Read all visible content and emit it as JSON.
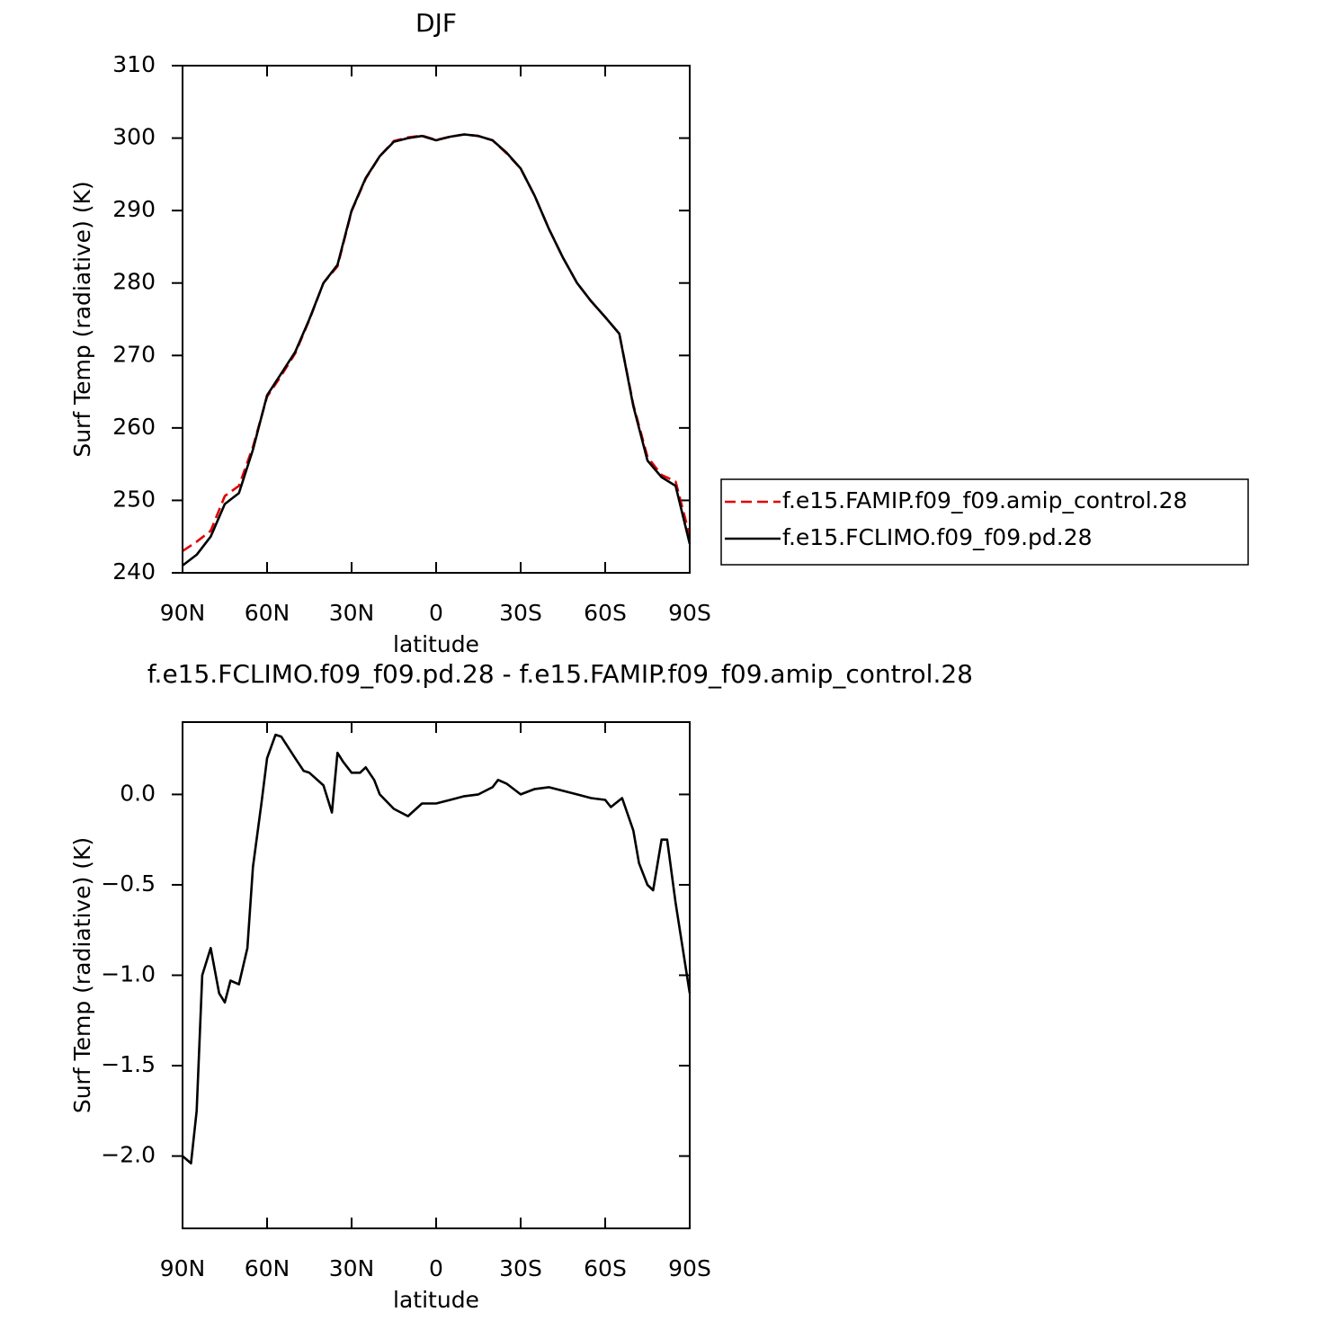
{
  "chart_data": [
    {
      "type": "line",
      "title": "DJF",
      "xlabel": "latitude",
      "ylabel": "Surf Temp (radiative) (K)",
      "x": [
        90,
        85,
        80,
        75,
        70,
        65,
        60,
        55,
        50,
        45,
        40,
        35,
        30,
        25,
        20,
        15,
        10,
        5,
        0,
        -5,
        -10,
        -15,
        -20,
        -25,
        -30,
        -35,
        -40,
        -45,
        -50,
        -55,
        -60,
        -65,
        -70,
        -75,
        -80,
        -85,
        -90
      ],
      "series": [
        {
          "name": "f.e15.FAMIP.f09_f09.amip_control.28",
          "color": "#e00000",
          "style": "dashed",
          "values": [
            243.0,
            244.3,
            245.8,
            250.6,
            252.0,
            257.4,
            264.3,
            267.2,
            270.3,
            274.9,
            280.0,
            282.3,
            289.9,
            294.4,
            297.5,
            299.6,
            300.1,
            300.35,
            299.75,
            300.2,
            300.5,
            300.3,
            299.7,
            297.9,
            295.8,
            292.0,
            287.5,
            283.5,
            280.0,
            277.5,
            275.3,
            273.0,
            263.2,
            256.0,
            253.5,
            252.6,
            245.1
          ]
        },
        {
          "name": "f.e15.FCLIMO.f09_f09.pd.28",
          "color": "#000000",
          "style": "solid",
          "values": [
            241.0,
            242.5,
            245.0,
            249.5,
            251.0,
            257.0,
            264.5,
            267.5,
            270.5,
            275.0,
            280.0,
            282.5,
            290.0,
            294.5,
            297.5,
            299.5,
            300.0,
            300.3,
            299.7,
            300.2,
            300.5,
            300.3,
            299.7,
            298.0,
            295.8,
            292.0,
            287.5,
            283.5,
            280.0,
            277.5,
            275.3,
            273.0,
            263.0,
            255.5,
            253.2,
            252.0,
            244.0
          ]
        }
      ],
      "xlim": [
        90,
        -90
      ],
      "xticks": [
        {
          "value": 90,
          "label": "90N"
        },
        {
          "value": 60,
          "label": "60N"
        },
        {
          "value": 30,
          "label": "30N"
        },
        0,
        {
          "value": -30,
          "label": "30S"
        },
        {
          "value": -60,
          "label": "60S"
        },
        {
          "value": -90,
          "label": "90S"
        }
      ],
      "ylim": [
        240,
        310
      ],
      "yticks": [
        240,
        250,
        260,
        270,
        280,
        290,
        300,
        310
      ],
      "legend": "right"
    },
    {
      "type": "line",
      "title": "f.e15.FCLIMO.f09_f09.pd.28 - f.e15.FAMIP.f09_f09.amip_control.28",
      "xlabel": "latitude",
      "ylabel": "Surf Temp (radiative) (K)",
      "x": [
        90,
        87,
        85,
        83,
        80,
        77,
        75,
        73,
        70,
        67,
        65,
        62,
        60,
        57,
        55,
        50,
        47,
        45,
        40,
        37,
        35,
        33,
        30,
        27,
        25,
        22,
        20,
        15,
        10,
        5,
        0,
        -5,
        -10,
        -15,
        -20,
        -22,
        -25,
        -30,
        -35,
        -40,
        -45,
        -50,
        -55,
        -60,
        -62,
        -66,
        -70,
        -72,
        -75,
        -77,
        -80,
        -82,
        -85,
        -87,
        -90
      ],
      "series": [
        {
          "color": "#000000",
          "style": "solid",
          "values": [
            -2.0,
            -2.04,
            -1.75,
            -1.0,
            -0.85,
            -1.1,
            -1.15,
            -1.03,
            -1.05,
            -0.85,
            -0.4,
            -0.05,
            0.2,
            0.33,
            0.32,
            0.2,
            0.13,
            0.12,
            0.05,
            -0.1,
            0.23,
            0.18,
            0.12,
            0.12,
            0.15,
            0.08,
            0.0,
            -0.08,
            -0.12,
            -0.05,
            -0.05,
            -0.03,
            -0.01,
            0.0,
            0.04,
            0.08,
            0.06,
            0.0,
            0.03,
            0.04,
            0.02,
            0.0,
            -0.02,
            -0.03,
            -0.07,
            -0.02,
            -0.2,
            -0.38,
            -0.5,
            -0.53,
            -0.25,
            -0.25,
            -0.6,
            -0.8,
            -1.1
          ]
        }
      ],
      "xlim": [
        90,
        -90
      ],
      "xticks": [
        {
          "value": 90,
          "label": "90N"
        },
        {
          "value": 60,
          "label": "60N"
        },
        {
          "value": 30,
          "label": "30N"
        },
        0,
        {
          "value": -30,
          "label": "30S"
        },
        {
          "value": -60,
          "label": "60S"
        },
        {
          "value": -90,
          "label": "90S"
        }
      ],
      "ylim": [
        -2.4,
        0.4
      ],
      "yticks": [
        {
          "value": -2,
          "label": "−2.0"
        },
        {
          "value": -1.5,
          "label": "−1.5"
        },
        {
          "value": -1,
          "label": "−1.0"
        },
        {
          "value": -0.5,
          "label": "−0.5"
        },
        {
          "value": 0,
          "label": "0.0"
        }
      ]
    }
  ]
}
